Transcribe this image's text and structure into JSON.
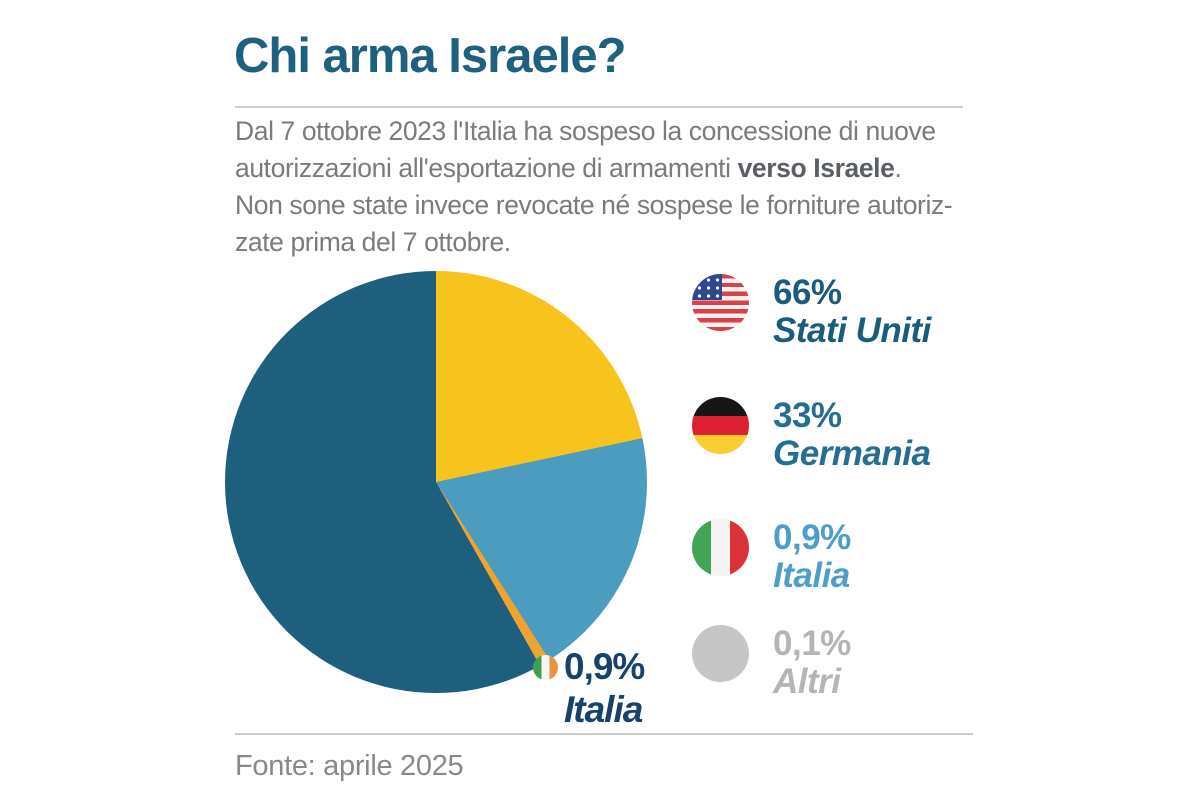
{
  "header": {
    "title": "Chi arma Israele?"
  },
  "description": {
    "line1": "Dal 7 ottobre 2023 l'Italia ha sospeso la concessione di nuove",
    "line2_regular": "autorizzazioni all'esportazione di armamenti ",
    "line2_bold": "verso Israele",
    "line2_end": ".",
    "line3": "Non sone state invece revocate né sospese le forniture autoriz-",
    "line4": "zate prima del 7 ottobre."
  },
  "chart_data": {
    "type": "pie",
    "title": "Chi arma Israele?",
    "unit": "%",
    "categories": [
      "Stati Uniti",
      "Germania",
      "Italia",
      "Altri"
    ],
    "values": [
      66,
      33,
      0.9,
      0.1
    ],
    "value_labels": [
      "66%",
      "33%",
      "0,9%",
      "0,1%"
    ],
    "legend_position": "right",
    "annotation": {
      "pct": "0,9%",
      "label": "Italia",
      "position": "bottom-right-of-pie"
    },
    "source": "Fonte: aprile 2025"
  },
  "pie_visual": {
    "slices": [
      {
        "name": "yellow-slice",
        "color": "#F7C41D",
        "from_deg": 0,
        "to_deg": 78
      },
      {
        "name": "light-blue-slice",
        "color": "#4C9CBF",
        "from_deg": 78,
        "to_deg": 147.5
      },
      {
        "name": "orange-sliver",
        "color": "#F0A42E",
        "from_deg": 147.5,
        "to_deg": 150.5
      },
      {
        "name": "dark-teal-slice",
        "color": "#1E5F7E",
        "from_deg": 150.5,
        "to_deg": 360
      }
    ]
  },
  "legend": {
    "items": [
      {
        "pct": "66%",
        "label": "Stati Uniti",
        "icon": "usa-flag-icon",
        "text_color": "#1B5B7D"
      },
      {
        "pct": "33%",
        "label": "Germania",
        "icon": "germany-flag-icon",
        "text_color": "#256E93"
      },
      {
        "pct": "0,9%",
        "label": "Italia",
        "icon": "italy-flag-icon",
        "text_color": "#4E9EC9"
      },
      {
        "pct": "0,1%",
        "label": "Altri",
        "icon": "others-circle-icon",
        "text_color": "#B5B5B5"
      }
    ]
  },
  "callout": {
    "pct": "0,9%",
    "label": "Italia",
    "flag": "ireland-style-flag-icon",
    "text_color": "#16426B"
  },
  "footer": {
    "source": "Fonte: aprile 2025"
  },
  "colors": {
    "title": "#20607F",
    "body_text": "#7B7B7B",
    "body_bold": "#5B5F63",
    "divider": "#CDCDCD",
    "footer_text": "#898989",
    "background": "#FFFFFF"
  }
}
